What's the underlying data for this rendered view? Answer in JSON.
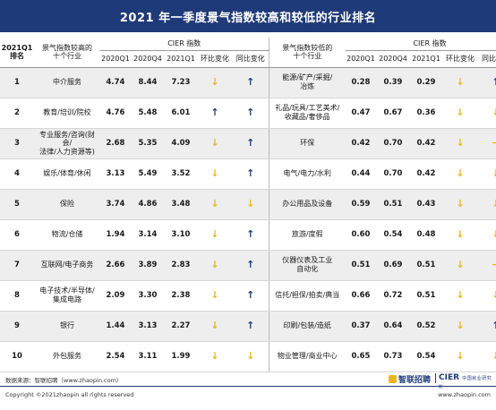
{
  "title": "2021 年一季度景气指数较高和较低的行业排名",
  "header": {
    "rank": "2021Q1\n排名",
    "high_industry": "景气指数较高的\n十个行业",
    "low_industry": "景气指数较低的\n十个行业",
    "cier": "CIER 指数",
    "q1": "2020Q1",
    "q4": "2020Q4",
    "q21": "2021Q1",
    "hb": "环比变化",
    "tb": "同比变化"
  },
  "rows": [
    {
      "rank": "1",
      "h_name": "中介服务",
      "h_q1": "4.74",
      "h_q4": "8.44",
      "h_q21": "7.23",
      "h_hb": "down",
      "h_tb": "up",
      "l_name": "能源/矿产/采掘/\n冶炼",
      "l_q1": "0.28",
      "l_q4": "0.39",
      "l_q21": "0.29",
      "l_hb": "down",
      "l_tb": "up"
    },
    {
      "rank": "2",
      "h_name": "教育/培训/院校",
      "h_q1": "4.76",
      "h_q4": "5.48",
      "h_q21": "6.01",
      "h_hb": "up",
      "h_tb": "up",
      "l_name": "礼品/玩具/工艺美术/\n收藏品/奢侈品",
      "l_q1": "0.47",
      "l_q4": "0.67",
      "l_q21": "0.36",
      "l_hb": "down",
      "l_tb": "down"
    },
    {
      "rank": "3",
      "h_name": "专业服务/咨询(财会/\n法律/人力资源等)",
      "h_q1": "2.68",
      "h_q4": "5.35",
      "h_q21": "4.09",
      "h_hb": "down",
      "h_tb": "up",
      "l_name": "环保",
      "l_q1": "0.42",
      "l_q4": "0.70",
      "l_q21": "0.42",
      "l_hb": "down",
      "l_tb": "flat"
    },
    {
      "rank": "4",
      "h_name": "娱乐/体育/休闲",
      "h_q1": "3.13",
      "h_q4": "5.49",
      "h_q21": "3.52",
      "h_hb": "down",
      "h_tb": "up",
      "l_name": "电气/电力/水利",
      "l_q1": "0.44",
      "l_q4": "0.70",
      "l_q21": "0.42",
      "l_hb": "down",
      "l_tb": "down"
    },
    {
      "rank": "5",
      "h_name": "保险",
      "h_q1": "3.74",
      "h_q4": "4.86",
      "h_q21": "3.48",
      "h_hb": "down",
      "h_tb": "down",
      "l_name": "办公用品及设备",
      "l_q1": "0.59",
      "l_q4": "0.51",
      "l_q21": "0.43",
      "l_hb": "down",
      "l_tb": "down"
    },
    {
      "rank": "6",
      "h_name": "物流/仓储",
      "h_q1": "1.94",
      "h_q4": "3.14",
      "h_q21": "3.10",
      "h_hb": "down",
      "h_tb": "up",
      "l_name": "旅游/度假",
      "l_q1": "0.60",
      "l_q4": "0.54",
      "l_q21": "0.48",
      "l_hb": "down",
      "l_tb": "down"
    },
    {
      "rank": "7",
      "h_name": "互联网/电子商务",
      "h_q1": "2.66",
      "h_q4": "3.89",
      "h_q21": "2.83",
      "h_hb": "down",
      "h_tb": "up",
      "l_name": "仪器仪表及工业\n自动化",
      "l_q1": "0.51",
      "l_q4": "0.69",
      "l_q21": "0.51",
      "l_hb": "down",
      "l_tb": "flat"
    },
    {
      "rank": "8",
      "h_name": "电子技术/半导体/\n集成电路",
      "h_q1": "2.09",
      "h_q4": "3.30",
      "h_q21": "2.38",
      "h_hb": "down",
      "h_tb": "up",
      "l_name": "信托/担保/拍卖/典当",
      "l_q1": "0.66",
      "l_q4": "0.72",
      "l_q21": "0.51",
      "l_hb": "down",
      "l_tb": "down"
    },
    {
      "rank": "9",
      "h_name": "银行",
      "h_q1": "1.44",
      "h_q4": "3.13",
      "h_q21": "2.27",
      "h_hb": "down",
      "h_tb": "up",
      "l_name": "印刷/包装/造纸",
      "l_q1": "0.37",
      "l_q4": "0.64",
      "l_q21": "0.52",
      "l_hb": "down",
      "l_tb": "up"
    },
    {
      "rank": "10",
      "h_name": "外包服务",
      "h_q1": "2.54",
      "h_q4": "3.11",
      "h_q21": "1.99",
      "h_hb": "down",
      "h_tb": "down",
      "l_name": "物业管理/商业中心",
      "l_q1": "0.65",
      "l_q4": "0.73",
      "l_q21": "0.54",
      "l_hb": "down",
      "l_tb": "down"
    }
  ],
  "footer": {
    "source": "数据来源：智联招聘（www.zhaopin.com）",
    "copyright": "Copyright ©2021zhaopin all rights reserved",
    "site": "www.zhaopin.com",
    "logo_zhaopin": "智联招聘",
    "logo_cier": "CIER",
    "logo_cier_sub": "中国就业研究所"
  },
  "colors": {
    "navy": "#1f3a78",
    "gold": "#e8b620"
  }
}
